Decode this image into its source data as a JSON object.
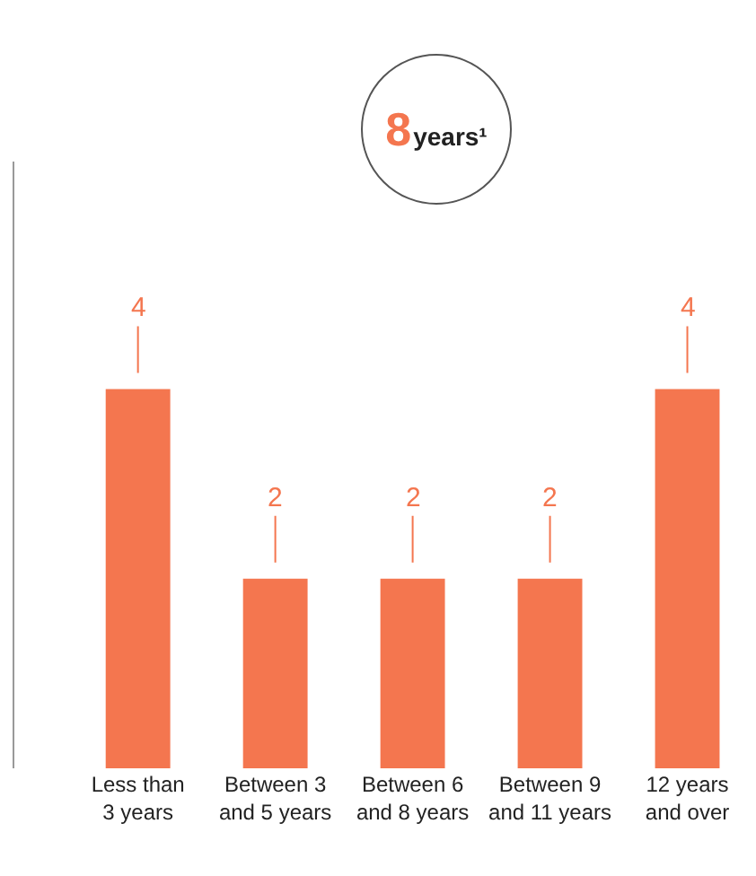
{
  "chart_data": {
    "type": "bar",
    "annotations": [
      "8years¹"
    ],
    "categories": [
      "Less than 3 years",
      "Between 3 and 5 years",
      "Between 6 and 8 years",
      "Between 9 and 11 years",
      "12 years and over"
    ],
    "values": [
      4,
      2,
      2,
      2,
      4
    ],
    "color": "#f4764f",
    "data_labels": true,
    "grid": false,
    "legend": false
  }
}
